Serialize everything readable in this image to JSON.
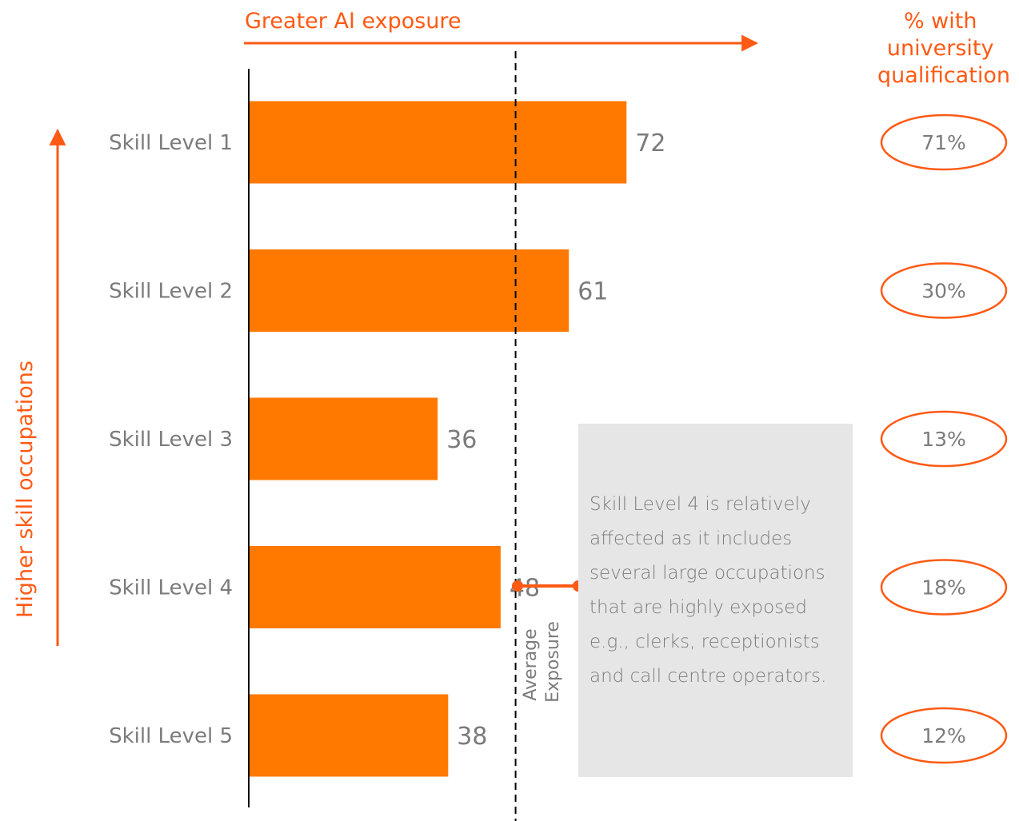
{
  "chart_data": {
    "type": "bar",
    "orientation": "horizontal",
    "categories": [
      "Skill Level 1",
      "Skill Level 2",
      "Skill Level 3",
      "Skill Level 4",
      "Skill Level 5"
    ],
    "values": [
      72,
      61,
      36,
      48,
      38
    ],
    "average_exposure": 51,
    "xlim": [
      0,
      100
    ],
    "x_axis_label": "Greater AI exposure",
    "y_axis_label": "Higher skill occupations",
    "reference_line_label": [
      "Average",
      "Exposure"
    ],
    "secondary_column": {
      "title": [
        "% with",
        "university",
        "qualification"
      ],
      "values": [
        "71%",
        "30%",
        "13%",
        "18%",
        "12%"
      ]
    },
    "annotation": "Skill Level 4 is relatively affected as it includes several large occupations that are highly exposed e.g., clerks, receptionists and call centre operators.",
    "grid": false,
    "colors": {
      "bar": "#ff7800",
      "accent": "#ff5a14",
      "text": "#7b7b7b",
      "note_bg": "#e6e6e6"
    }
  }
}
